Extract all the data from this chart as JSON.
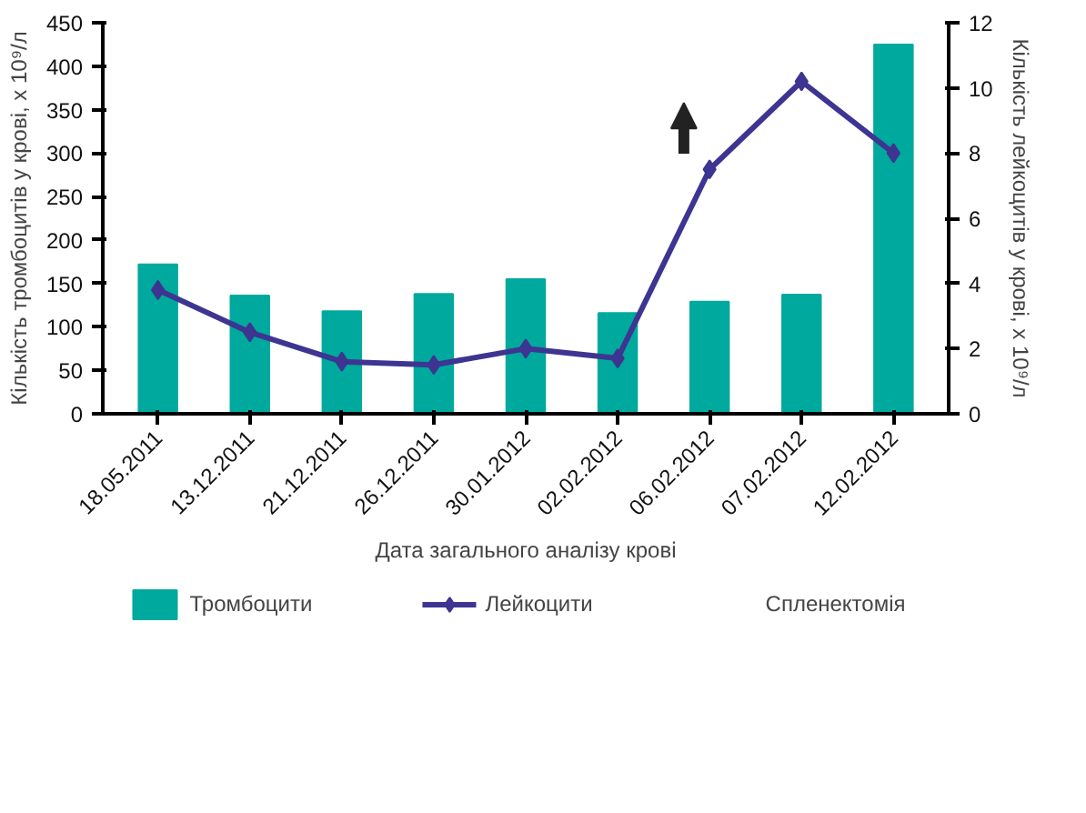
{
  "chart_data": {
    "type": "bar",
    "xlabel": "Дата загального аналізу крові",
    "ylabel": "Кількість тромбоцитів у крові, х 10⁹/л",
    "y2label": "Кількість лейкоцитів у крові, х 10⁹/л",
    "categories": [
      "18.05.2011",
      "13.12.2011",
      "21.12.2011",
      "26.12.2011",
      "30.01.2012",
      "02.02.2012",
      "06.02.2012",
      "07.02.2012",
      "12.02.2012"
    ],
    "series": [
      {
        "name": "Тромбоцити",
        "color": "#00a99d",
        "values": [
          172,
          136,
          118,
          138,
          155,
          116,
          129,
          137,
          425
        ]
      },
      {
        "name": "Лейкоцити",
        "type": "line",
        "axis": "y2",
        "color": "#3d3591",
        "marker": "diamond",
        "values": [
          3.8,
          2.5,
          1.6,
          1.5,
          2.0,
          1.7,
          7.5,
          10.2,
          8.0
        ]
      }
    ],
    "annotations": [
      "Спленектомія"
    ],
    "ylim": [
      0,
      450
    ],
    "yticks": [
      0,
      50,
      100,
      150,
      200,
      250,
      300,
      350,
      400,
      450
    ],
    "y2lim": [
      0,
      12
    ],
    "y2ticks": [
      0,
      2,
      4,
      6,
      8,
      10,
      12
    ],
    "grid": false,
    "legend": "bottom"
  }
}
